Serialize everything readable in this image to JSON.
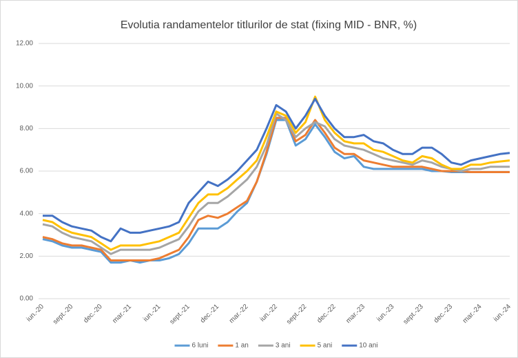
{
  "chart_data": {
    "type": "line",
    "title": "Evolutia randamentelor titlurilor de stat (fixing MID - BNR, %)",
    "categories": [
      "iun.-20",
      null,
      null,
      "sept.-20",
      null,
      null,
      "dec.-20",
      null,
      null,
      "mar.-21",
      null,
      null,
      "iun.-21",
      null,
      null,
      "sept.-21",
      null,
      null,
      "dec.-21",
      null,
      null,
      "mar.-22",
      null,
      null,
      "iun.-22",
      null,
      null,
      "sept.-22",
      null,
      null,
      "dec.-22",
      null,
      null,
      "mar.-23",
      null,
      null,
      "iun.-23",
      null,
      null,
      "sept.-23",
      null,
      null,
      "dec.-23",
      null,
      null,
      "mar.-24",
      null,
      null,
      "iun.-24"
    ],
    "series": [
      {
        "name": "6 luni",
        "color": "#5B9BD5",
        "values": [
          2.8,
          2.7,
          2.5,
          2.4,
          2.4,
          2.3,
          2.2,
          1.7,
          1.7,
          1.8,
          1.7,
          1.8,
          1.8,
          1.9,
          2.1,
          2.6,
          3.3,
          3.3,
          3.3,
          3.6,
          4.1,
          4.5,
          5.5,
          6.8,
          8.4,
          8.4,
          7.2,
          7.5,
          8.2,
          7.6,
          6.9,
          6.6,
          6.7,
          6.2,
          6.1,
          6.1,
          6.1,
          6.1,
          6.1,
          6.1,
          6.0,
          6.0,
          5.95,
          5.95,
          5.95,
          5.95,
          5.95,
          5.95,
          5.95
        ]
      },
      {
        "name": "1 an",
        "color": "#ED7D31",
        "values": [
          2.9,
          2.8,
          2.6,
          2.5,
          2.5,
          2.4,
          2.3,
          1.8,
          1.8,
          1.8,
          1.8,
          1.8,
          1.9,
          2.1,
          2.3,
          2.9,
          3.7,
          3.9,
          3.8,
          4.0,
          4.3,
          4.6,
          5.5,
          6.9,
          8.5,
          8.5,
          7.4,
          7.7,
          8.4,
          7.8,
          7.1,
          6.8,
          6.8,
          6.5,
          6.4,
          6.3,
          6.2,
          6.2,
          6.2,
          6.2,
          6.1,
          6.0,
          6.0,
          6.0,
          5.95,
          5.95,
          5.95,
          5.95,
          5.95
        ]
      },
      {
        "name": "3 ani",
        "color": "#A5A5A5",
        "values": [
          3.5,
          3.4,
          3.1,
          2.9,
          2.8,
          2.7,
          2.4,
          2.1,
          2.3,
          2.3,
          2.3,
          2.3,
          2.4,
          2.6,
          2.8,
          3.4,
          4.1,
          4.5,
          4.5,
          4.8,
          5.2,
          5.6,
          6.2,
          7.2,
          8.7,
          8.4,
          7.6,
          8.0,
          8.3,
          8.1,
          7.5,
          7.2,
          7.1,
          7.0,
          6.8,
          6.6,
          6.5,
          6.4,
          6.3,
          6.5,
          6.4,
          6.2,
          6.1,
          6.0,
          6.1,
          6.1,
          6.2,
          6.2,
          6.2
        ]
      },
      {
        "name": "5 ani",
        "color": "#FFC000",
        "values": [
          3.7,
          3.6,
          3.3,
          3.1,
          3.0,
          2.9,
          2.6,
          2.3,
          2.5,
          2.5,
          2.5,
          2.6,
          2.7,
          2.9,
          3.1,
          3.8,
          4.5,
          4.9,
          4.9,
          5.2,
          5.6,
          6.0,
          6.5,
          7.6,
          8.8,
          8.6,
          7.8,
          8.3,
          9.5,
          8.4,
          7.8,
          7.4,
          7.3,
          7.3,
          7.0,
          6.9,
          6.7,
          6.5,
          6.4,
          6.7,
          6.6,
          6.3,
          6.1,
          6.1,
          6.3,
          6.3,
          6.4,
          6.45,
          6.5
        ]
      },
      {
        "name": "10 ani",
        "color": "#4472C4",
        "values": [
          3.9,
          3.9,
          3.6,
          3.4,
          3.3,
          3.2,
          2.9,
          2.7,
          3.3,
          3.1,
          3.1,
          3.2,
          3.3,
          3.4,
          3.6,
          4.5,
          5.0,
          5.5,
          5.3,
          5.6,
          6.0,
          6.5,
          7.0,
          8.0,
          9.1,
          8.8,
          8.0,
          8.6,
          9.4,
          8.6,
          8.0,
          7.6,
          7.6,
          7.7,
          7.4,
          7.3,
          7.0,
          6.8,
          6.8,
          7.1,
          7.1,
          6.8,
          6.4,
          6.3,
          6.5,
          6.6,
          6.7,
          6.8,
          6.85
        ]
      }
    ],
    "ylim": [
      0,
      12
    ],
    "yticks": [
      {
        "value": 0,
        "label": "0.00"
      },
      {
        "value": 2,
        "label": "2.00"
      },
      {
        "value": 4,
        "label": "4.00"
      },
      {
        "value": 6,
        "label": "6.00"
      },
      {
        "value": 8,
        "label": "8.00"
      },
      {
        "value": 10,
        "label": "10.00"
      },
      {
        "value": 12,
        "label": "12.00"
      }
    ],
    "grid": true,
    "legend": "bottom"
  }
}
